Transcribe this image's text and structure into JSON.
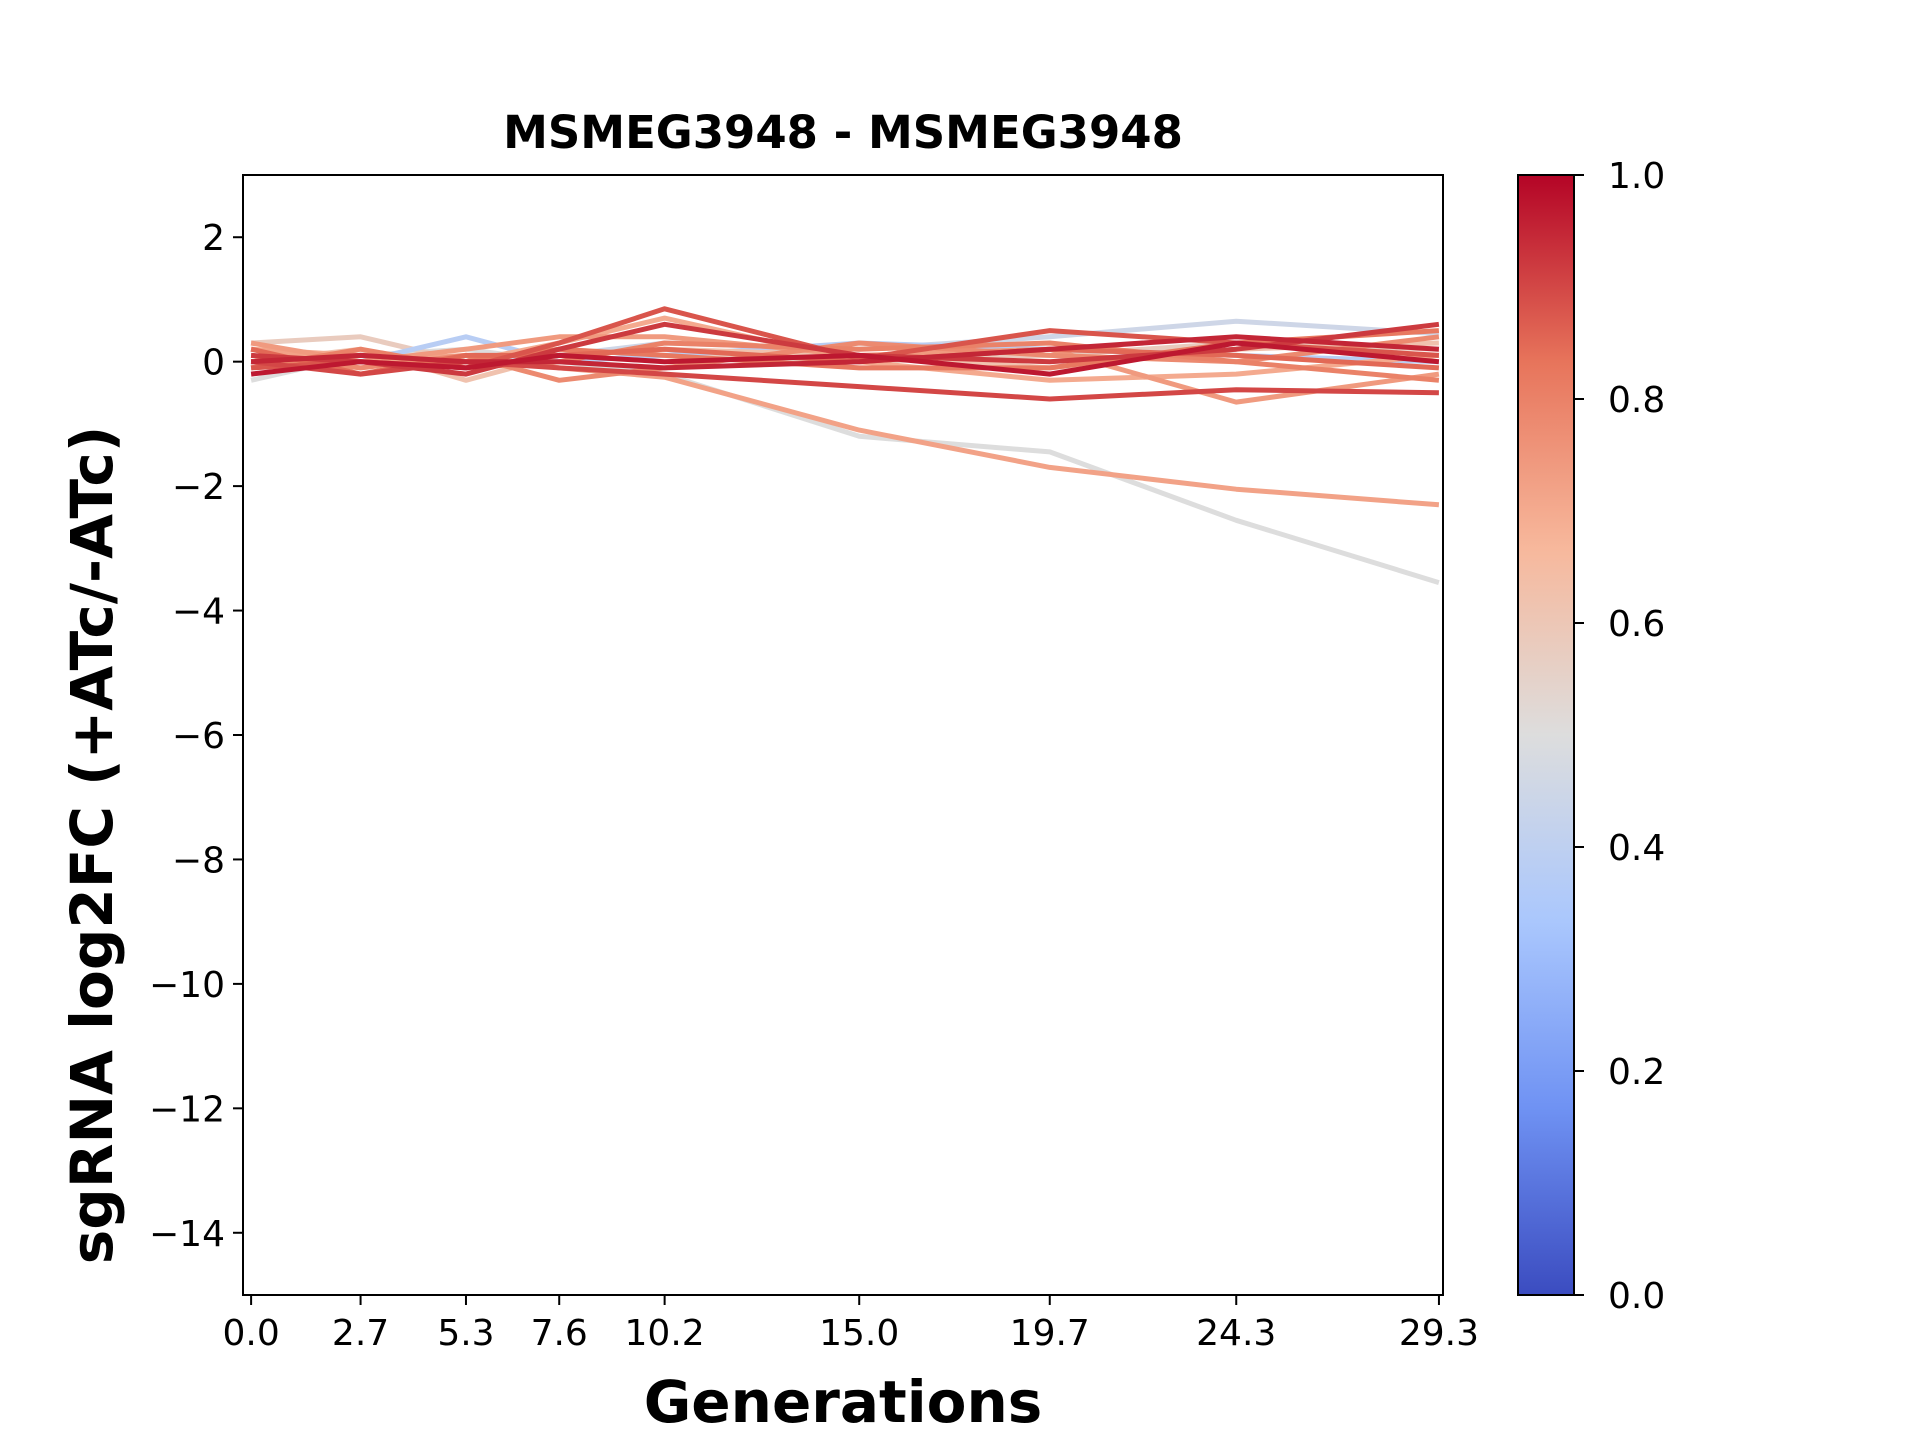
{
  "chart_data": {
    "type": "line",
    "title": "MSMEG3948 - MSMEG3948",
    "xlabel": "Generations",
    "ylabel": "sgRNA log2FC (+ATc/-ATc)",
    "x": [
      0.0,
      2.7,
      5.3,
      7.6,
      10.2,
      15.0,
      19.7,
      24.3,
      29.3
    ],
    "x_tick_labels": [
      "0.0",
      "2.7",
      "5.3",
      "7.6",
      "10.2",
      "15.0",
      "19.7",
      "24.3",
      "29.3"
    ],
    "xlim": [
      -0.2,
      29.4
    ],
    "ylim": [
      -15,
      3
    ],
    "y_ticks": [
      2,
      0,
      -2,
      -4,
      -6,
      -8,
      -10,
      -12,
      -14
    ],
    "y_tick_labels": [
      "2",
      "0",
      "−2",
      "−4",
      "−6",
      "−8",
      "−10",
      "−12",
      "−14"
    ],
    "colorbar": {
      "colormap": "coolwarm",
      "range": [
        0.0,
        1.0
      ],
      "ticks": [
        "0.0",
        "0.2",
        "0.4",
        "0.6",
        "0.8",
        "1.0"
      ],
      "stops": [
        "#3b4cc0",
        "#6f92f3",
        "#aac7fd",
        "#dddddd",
        "#f7b89c",
        "#e7745b",
        "#b40426"
      ]
    },
    "series": [
      {
        "value": 0.5,
        "values": [
          -0.3,
          0.1,
          0.2,
          0.0,
          -0.2,
          -1.2,
          -1.45,
          -2.55,
          -3.55
        ]
      },
      {
        "value": 0.72,
        "values": [
          0.2,
          0.0,
          0.1,
          -0.1,
          -0.25,
          -1.1,
          -1.7,
          -2.05,
          -2.3
        ]
      },
      {
        "value": 0.38,
        "values": [
          0.1,
          0.0,
          0.4,
          0.0,
          0.1,
          0.3,
          0.2,
          0.1,
          0.0
        ]
      },
      {
        "value": 0.45,
        "values": [
          0.0,
          0.1,
          0.0,
          0.1,
          0.3,
          0.2,
          0.4,
          0.65,
          0.45
        ]
      },
      {
        "value": 0.58,
        "values": [
          0.3,
          0.4,
          0.0,
          0.2,
          0.1,
          0.0,
          0.1,
          0.3,
          0.2
        ]
      },
      {
        "value": 0.62,
        "values": [
          0.0,
          0.2,
          -0.3,
          0.1,
          0.2,
          0.1,
          -0.1,
          0.2,
          0.3
        ]
      },
      {
        "value": 0.7,
        "values": [
          0.2,
          0.1,
          0.0,
          0.3,
          0.7,
          0.0,
          -0.3,
          -0.2,
          0.1
        ]
      },
      {
        "value": 0.74,
        "values": [
          0.3,
          0.0,
          0.2,
          0.4,
          0.4,
          0.1,
          0.2,
          -0.65,
          -0.2
        ]
      },
      {
        "value": 0.78,
        "values": [
          0.1,
          -0.1,
          0.1,
          -0.3,
          -0.1,
          0.3,
          0.1,
          0.0,
          0.4
        ]
      },
      {
        "value": 0.8,
        "values": [
          -0.1,
          0.2,
          -0.1,
          0.0,
          0.3,
          0.2,
          0.3,
          0.0,
          -0.3
        ]
      },
      {
        "value": 0.82,
        "values": [
          0.0,
          0.1,
          0.0,
          0.2,
          0.1,
          -0.1,
          -0.1,
          0.3,
          0.5
        ]
      },
      {
        "value": 0.85,
        "values": [
          0.2,
          -0.2,
          0.1,
          0.1,
          0.2,
          0.0,
          0.2,
          0.1,
          -0.1
        ]
      },
      {
        "value": 0.88,
        "values": [
          -0.1,
          0.0,
          -0.1,
          0.3,
          0.85,
          0.05,
          0.5,
          0.3,
          0.1
        ]
      },
      {
        "value": 0.9,
        "values": [
          0.0,
          -0.2,
          0.0,
          -0.1,
          -0.2,
          -0.4,
          -0.6,
          -0.45,
          -0.5
        ]
      },
      {
        "value": 0.92,
        "values": [
          0.1,
          0.0,
          -0.2,
          0.2,
          0.6,
          0.1,
          0.0,
          0.2,
          0.6
        ]
      },
      {
        "value": 0.95,
        "values": [
          0.0,
          0.1,
          0.0,
          0.0,
          -0.1,
          0.0,
          0.2,
          0.4,
          0.2
        ]
      },
      {
        "value": 0.97,
        "values": [
          -0.2,
          0.0,
          -0.1,
          0.1,
          0.0,
          0.1,
          -0.2,
          0.3,
          0.0
        ]
      }
    ]
  }
}
